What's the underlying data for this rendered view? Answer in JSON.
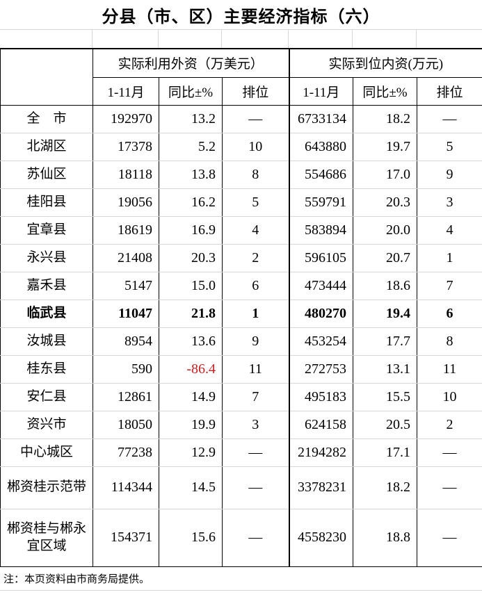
{
  "page": {
    "title": "分县（市、区）主要经济指标（六）"
  },
  "table": {
    "col_groups": [
      {
        "label": "实际利用外资（万美元）"
      },
      {
        "label": "实际到位内资(万元)"
      }
    ],
    "sub_headers": [
      "1-11月",
      "同比±%",
      "排位"
    ],
    "rows": [
      {
        "name": "全　市",
        "fdi": "192970",
        "fdi_yoy": "13.2",
        "fdi_rank": "—",
        "dom": "6733134",
        "dom_yoy": "18.2",
        "dom_rank": "—"
      },
      {
        "name": "北湖区",
        "fdi": "17378",
        "fdi_yoy": "5.2",
        "fdi_rank": "10",
        "dom": "643880",
        "dom_yoy": "19.7",
        "dom_rank": "5"
      },
      {
        "name": "苏仙区",
        "fdi": "18118",
        "fdi_yoy": "13.8",
        "fdi_rank": "8",
        "dom": "554686",
        "dom_yoy": "17.0",
        "dom_rank": "9"
      },
      {
        "name": "桂阳县",
        "fdi": "19056",
        "fdi_yoy": "16.2",
        "fdi_rank": "5",
        "dom": "559791",
        "dom_yoy": "20.3",
        "dom_rank": "3"
      },
      {
        "name": "宜章县",
        "fdi": "18619",
        "fdi_yoy": "16.9",
        "fdi_rank": "4",
        "dom": "583894",
        "dom_yoy": "20.0",
        "dom_rank": "4"
      },
      {
        "name": "永兴县",
        "fdi": "21408",
        "fdi_yoy": "20.3",
        "fdi_rank": "2",
        "dom": "596105",
        "dom_yoy": "20.7",
        "dom_rank": "1"
      },
      {
        "name": "嘉禾县",
        "fdi": "5147",
        "fdi_yoy": "15.0",
        "fdi_rank": "6",
        "dom": "473444",
        "dom_yoy": "18.6",
        "dom_rank": "7"
      },
      {
        "name": "临武县",
        "bold": true,
        "fdi": "11047",
        "fdi_yoy": "21.8",
        "fdi_rank": "1",
        "dom": "480270",
        "dom_yoy": "19.4",
        "dom_rank": "6"
      },
      {
        "name": "汝城县",
        "fdi": "8954",
        "fdi_yoy": "13.6",
        "fdi_rank": "9",
        "dom": "453254",
        "dom_yoy": "17.7",
        "dom_rank": "8"
      },
      {
        "name": "桂东县",
        "red": [
          "fdi_yoy"
        ],
        "fdi": "590",
        "fdi_yoy": "-86.4",
        "fdi_rank": "11",
        "dom": "272753",
        "dom_yoy": "13.1",
        "dom_rank": "11"
      },
      {
        "name": "安仁县",
        "fdi": "12861",
        "fdi_yoy": "14.9",
        "fdi_rank": "7",
        "dom": "495183",
        "dom_yoy": "15.5",
        "dom_rank": "10"
      },
      {
        "name": "资兴市",
        "fdi": "18050",
        "fdi_yoy": "19.9",
        "fdi_rank": "3",
        "dom": "624158",
        "dom_yoy": "20.5",
        "dom_rank": "2"
      },
      {
        "name": "中心城区",
        "fdi": "77238",
        "fdi_yoy": "12.9",
        "fdi_rank": "—",
        "dom": "2194282",
        "dom_yoy": "17.1",
        "dom_rank": "—"
      },
      {
        "name": "郴资桂示范带",
        "size": "tall",
        "fdi": "114344",
        "fdi_yoy": "14.5",
        "fdi_rank": "—",
        "dom": "3378231",
        "dom_yoy": "18.2",
        "dom_rank": "—"
      },
      {
        "name": "郴资桂与郴永宜区域",
        "size": "xtall",
        "fdi": "154371",
        "fdi_yoy": "15.6",
        "fdi_rank": "—",
        "dom": "4558230",
        "dom_yoy": "18.8",
        "dom_rank": "—"
      }
    ]
  },
  "footnote": "注：本页资料由市商务局提供。",
  "colors": {
    "negative_value": "#c52222",
    "border": "#000000",
    "gridline": "#d6d6d6"
  }
}
